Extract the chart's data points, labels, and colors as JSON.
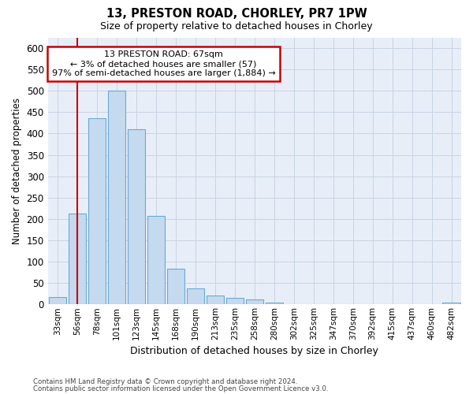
{
  "title_line1": "13, PRESTON ROAD, CHORLEY, PR7 1PW",
  "title_line2": "Size of property relative to detached houses in Chorley",
  "xlabel": "Distribution of detached houses by size in Chorley",
  "ylabel": "Number of detached properties",
  "footer_line1": "Contains HM Land Registry data © Crown copyright and database right 2024.",
  "footer_line2": "Contains public sector information licensed under the Open Government Licence v3.0.",
  "bar_labels": [
    "33sqm",
    "56sqm",
    "78sqm",
    "101sqm",
    "123sqm",
    "145sqm",
    "168sqm",
    "190sqm",
    "213sqm",
    "235sqm",
    "258sqm",
    "280sqm",
    "302sqm",
    "325sqm",
    "347sqm",
    "370sqm",
    "392sqm",
    "415sqm",
    "437sqm",
    "460sqm",
    "482sqm"
  ],
  "bar_values": [
    18,
    212,
    435,
    500,
    410,
    207,
    83,
    37,
    20,
    16,
    12,
    5,
    1,
    1,
    1,
    1,
    1,
    1,
    0,
    0,
    5
  ],
  "bar_color": "#c5d9ef",
  "bar_edgecolor": "#6aaad4",
  "bar_linewidth": 0.8,
  "vline_position": 1.5,
  "vline_color": "#cc0000",
  "vline_linewidth": 1.5,
  "annotation_line1": "13 PRESTON ROAD: 67sqm",
  "annotation_line2": "← 3% of detached houses are smaller (57)",
  "annotation_line3": "97% of semi-detached houses are larger (1,884) →",
  "annotation_box_color": "white",
  "annotation_box_edgecolor": "#cc0000",
  "grid_color": "#c8d4e3",
  "background_color": "#e8eef8",
  "ylim": [
    0,
    625
  ],
  "yticks": [
    0,
    50,
    100,
    150,
    200,
    250,
    300,
    350,
    400,
    450,
    500,
    550,
    600
  ]
}
